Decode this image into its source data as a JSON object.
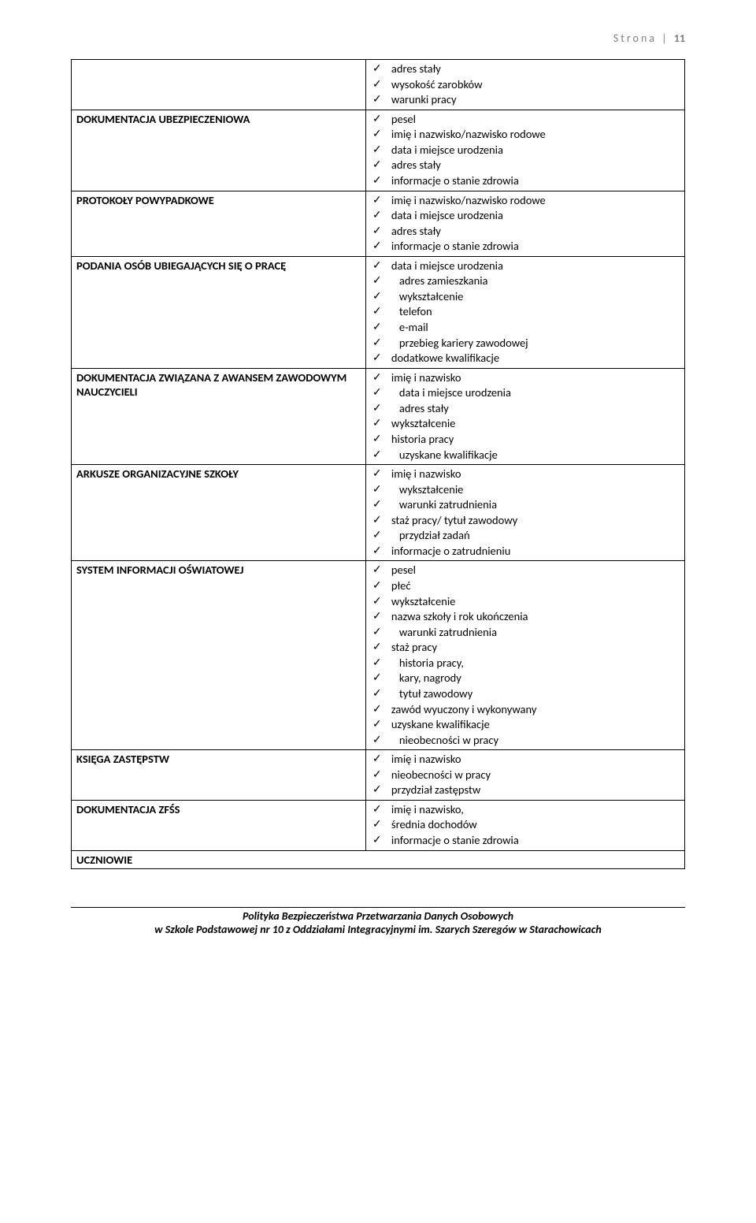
{
  "header": {
    "label": "Strona",
    "sep": " | ",
    "page": "11"
  },
  "rows": [
    {
      "left": "",
      "items": [
        {
          "t": "adres stały"
        },
        {
          "t": "wysokość zarobków"
        },
        {
          "t": "warunki pracy"
        }
      ]
    },
    {
      "left": "DOKUMENTACJA UBEZPIECZENIOWA",
      "items": [
        {
          "t": "pesel"
        },
        {
          "t": "imię i nazwisko/nazwisko rodowe"
        },
        {
          "t": "data i miejsce urodzenia"
        },
        {
          "t": "adres stały"
        },
        {
          "t": "informacje o stanie zdrowia"
        }
      ]
    },
    {
      "left": "PROTOKOŁY POWYPADKOWE",
      "items": [
        {
          "t": "imię i nazwisko/nazwisko rodowe"
        },
        {
          "t": "data i miejsce urodzenia"
        },
        {
          "t": "adres stały"
        },
        {
          "t": "informacje o stanie zdrowia"
        }
      ]
    },
    {
      "left": "PODANIA OSÓB UBIEGAJĄCYCH SIĘ O PRACĘ",
      "items": [
        {
          "t": "data i miejsce urodzenia"
        },
        {
          "t": "adres zamieszkania",
          "indent": true
        },
        {
          "t": "wykształcenie",
          "indent": true
        },
        {
          "t": "telefon",
          "indent": true
        },
        {
          "t": "e-mail",
          "indent": true
        },
        {
          "t": "przebieg kariery zawodowej",
          "indent": true
        },
        {
          "t": "dodatkowe kwalifikacje"
        }
      ]
    },
    {
      "left": "DOKUMENTACJA ZWIĄZANA Z AWANSEM ZAWODOWYM NAUCZYCIELI",
      "items": [
        {
          "t": "imię i nazwisko"
        },
        {
          "t": "data i miejsce urodzenia",
          "indent": true
        },
        {
          "t": "adres stały",
          "indent": true
        },
        {
          "t": "wykształcenie"
        },
        {
          "t": "historia pracy"
        },
        {
          "t": "uzyskane kwalifikacje",
          "indent": true
        }
      ]
    },
    {
      "left": "ARKUSZE ORGANIZACYJNE SZKOŁY",
      "items": [
        {
          "t": "imię i nazwisko"
        },
        {
          "t": "wykształcenie",
          "indent": true
        },
        {
          "t": "warunki zatrudnienia",
          "indent": true
        },
        {
          "t": "staż pracy/ tytuł zawodowy"
        },
        {
          "t": "przydział zadań",
          "indent": true
        },
        {
          "t": "informacje o zatrudnieniu"
        }
      ]
    },
    {
      "left": "SYSTEM INFORMACJI OŚWIATOWEJ",
      "items": [
        {
          "t": "pesel"
        },
        {
          "t": "płeć"
        },
        {
          "t": "wykształcenie"
        },
        {
          "t": "nazwa szkoły i rok ukończenia"
        },
        {
          "t": "warunki zatrudnienia",
          "indent": true
        },
        {
          "t": "staż pracy"
        },
        {
          "t": "historia pracy,",
          "indent": true
        },
        {
          "t": "kary, nagrody",
          "indent": true
        },
        {
          "t": "tytuł zawodowy",
          "indent": true
        },
        {
          "t": "zawód wyuczony i wykonywany"
        },
        {
          "t": "uzyskane kwalifikacje"
        },
        {
          "t": "nieobecności w pracy",
          "indent": true
        }
      ]
    },
    {
      "left": "KSIĘGA ZASTĘPSTW",
      "items": [
        {
          "t": "imię i nazwisko"
        },
        {
          "t": "nieobecności w pracy"
        },
        {
          "t": "przydział zastępstw"
        }
      ]
    },
    {
      "left": "DOKUMENTACJA ZFŚS",
      "items": [
        {
          "t": "imię i nazwisko,"
        },
        {
          "t": "średnia dochodów"
        },
        {
          "t": "informacje o stanie zdrowia"
        }
      ]
    }
  ],
  "section": "UCZNIOWIE",
  "footer": {
    "line1": "Polityka Bezpieczeństwa Przetwarzania Danych Osobowych",
    "line2": "w Szkole Podstawowej nr 10 z Oddziałami Integracyjnymi im. Szarych Szeregów w Starachowicach"
  }
}
